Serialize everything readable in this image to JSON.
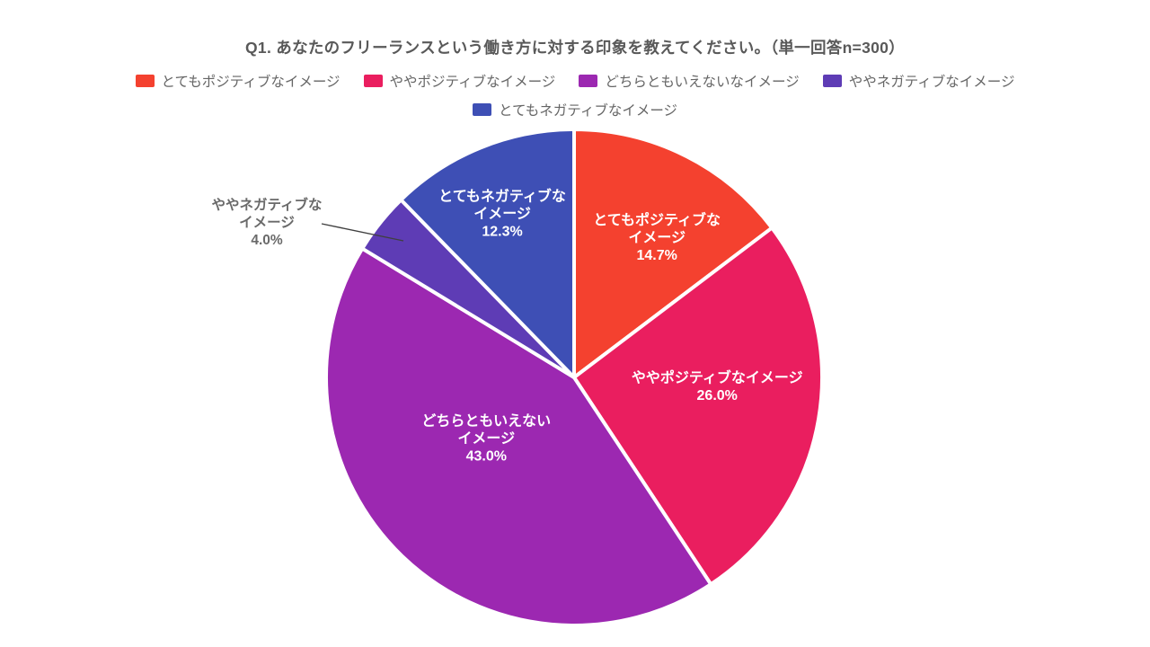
{
  "title": "Q1. あなたのフリーランスという働き方に対する印象を教えてください。（単一回答n=300）",
  "legend": {
    "items": [
      {
        "label": "とてもポジティブなイメージ",
        "color": "#F4412F"
      },
      {
        "label": "ややポジティブなイメージ",
        "color": "#EA1E5F"
      },
      {
        "label": "どちらともいえないなイメージ",
        "color": "#9C28B1"
      },
      {
        "label": "ややネガティブなイメージ",
        "color": "#5E3CB5"
      },
      {
        "label": "とてもネガティブなイメージ",
        "color": "#3E4FB5"
      }
    ]
  },
  "colors": {
    "background": "#FFFFFF",
    "title_text": "#595959",
    "legend_text": "#666666",
    "slice_border": "#FFFFFF",
    "outside_label_text": "#6A6A6A",
    "leader_line": "#404040"
  },
  "chart_data": {
    "type": "pie",
    "title": "Q1. あなたのフリーランスという働き方に対する印象を教えてください。（単一回答n=300）",
    "categories": [
      "とてもポジティブなイメージ",
      "ややポジティブなイメージ",
      "どちらともいえないイメージ",
      "ややネガティブなイメージ",
      "とてもネガティブなイメージ"
    ],
    "values": [
      14.7,
      26.0,
      43.0,
      4.0,
      12.3
    ],
    "unit": "%",
    "sample_size": 300,
    "colors": [
      "#F4412F",
      "#EA1E5F",
      "#9C28B1",
      "#5E3CB5",
      "#3E4FB5"
    ],
    "start_angle_deg": 0,
    "direction": "clockwise",
    "legend_position": "top",
    "slice_labels": [
      {
        "lines": [
          "とてもポジティブな",
          "イメージ",
          "14.7%"
        ],
        "placement": "inside",
        "text_color": "#FFFFFF"
      },
      {
        "lines": [
          "ややポジティブなイメージ",
          "26.0%"
        ],
        "placement": "inside",
        "text_color": "#FFFFFF"
      },
      {
        "lines": [
          "どちらともいえない",
          "イメージ",
          "43.0%"
        ],
        "placement": "inside",
        "text_color": "#FFFFFF"
      },
      {
        "lines": [
          "ややネガティブな",
          "イメージ",
          "4.0%"
        ],
        "placement": "outside",
        "text_color": "#6A6A6A"
      },
      {
        "lines": [
          "とてもネガティブな",
          "イメージ",
          "12.3%"
        ],
        "placement": "inside",
        "text_color": "#FFFFFF"
      }
    ]
  }
}
